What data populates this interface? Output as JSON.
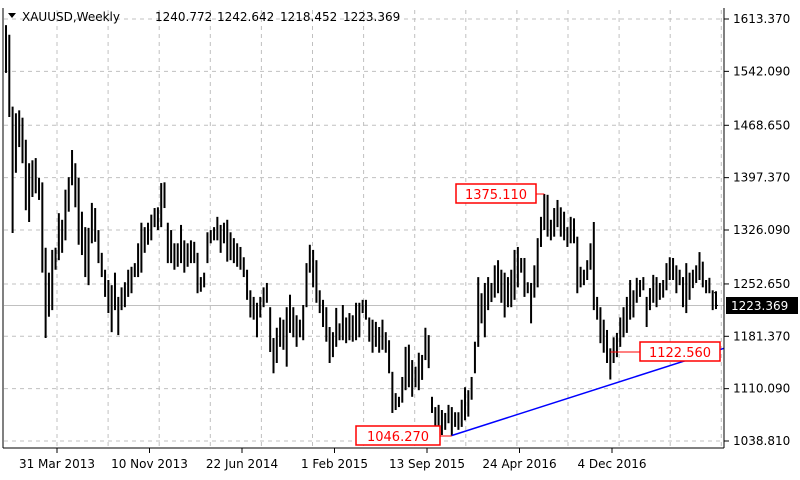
{
  "chart_data": {
    "type": "ohlc-bar",
    "symbol": "XAUUSD",
    "timeframe": "Weekly",
    "title": "XAUUSD,Weekly",
    "last_bar": {
      "open": "1240.772",
      "high": "1242.642",
      "low": "1218.452",
      "close": "1223.369"
    },
    "current_price_label": "1223.369",
    "ylim": [
      1029,
      1626
    ],
    "grid": true,
    "y_ticks": [
      "1613.370",
      "1542.090",
      "1468.650",
      "1397.370",
      "1326.090",
      "1252.650",
      "1181.370",
      "1110.090",
      "1038.810"
    ],
    "x_ticks": [
      "31 Mar 2013",
      "10 Nov 2013",
      "22 Jun 2014",
      "1 Feb 2015",
      "13 Sep 2015",
      "24 Apr 2016",
      "4 Dec 2016"
    ],
    "bars_high_low": [
      [
        1605,
        1540
      ],
      [
        1592,
        1480
      ],
      [
        1494,
        1322
      ],
      [
        1485,
        1404
      ],
      [
        1489,
        1439
      ],
      [
        1479,
        1417
      ],
      [
        1449,
        1353
      ],
      [
        1417,
        1337
      ],
      [
        1421,
        1371
      ],
      [
        1424,
        1376
      ],
      [
        1397,
        1367
      ],
      [
        1391,
        1268
      ],
      [
        1302,
        1179
      ],
      [
        1268,
        1208
      ],
      [
        1299,
        1217
      ],
      [
        1302,
        1272
      ],
      [
        1349,
        1285
      ],
      [
        1340,
        1295
      ],
      [
        1381,
        1312
      ],
      [
        1398,
        1351
      ],
      [
        1435,
        1387
      ],
      [
        1417,
        1357
      ],
      [
        1397,
        1306
      ],
      [
        1351,
        1292
      ],
      [
        1330,
        1262
      ],
      [
        1329,
        1251
      ],
      [
        1363,
        1308
      ],
      [
        1356,
        1310
      ],
      [
        1326,
        1281
      ],
      [
        1295,
        1262
      ],
      [
        1272,
        1235
      ],
      [
        1258,
        1213
      ],
      [
        1251,
        1187
      ],
      [
        1268,
        1217
      ],
      [
        1235,
        1183
      ],
      [
        1248,
        1217
      ],
      [
        1255,
        1221
      ],
      [
        1272,
        1235
      ],
      [
        1276,
        1240
      ],
      [
        1281,
        1262
      ],
      [
        1308,
        1262
      ],
      [
        1336,
        1268
      ],
      [
        1330,
        1295
      ],
      [
        1336,
        1306
      ],
      [
        1347,
        1312
      ],
      [
        1356,
        1330
      ],
      [
        1357,
        1326
      ],
      [
        1390,
        1330
      ],
      [
        1391,
        1356
      ],
      [
        1336,
        1281
      ],
      [
        1326,
        1281
      ],
      [
        1308,
        1272
      ],
      [
        1308,
        1276
      ],
      [
        1333,
        1281
      ],
      [
        1312,
        1268
      ],
      [
        1308,
        1276
      ],
      [
        1312,
        1281
      ],
      [
        1310,
        1281
      ],
      [
        1295,
        1240
      ],
      [
        1262,
        1242
      ],
      [
        1268,
        1248
      ],
      [
        1323,
        1281
      ],
      [
        1326,
        1308
      ],
      [
        1330,
        1312
      ],
      [
        1344,
        1312
      ],
      [
        1333,
        1295
      ],
      [
        1336,
        1308
      ],
      [
        1340,
        1283
      ],
      [
        1323,
        1285
      ],
      [
        1315,
        1281
      ],
      [
        1308,
        1276
      ],
      [
        1303,
        1272
      ],
      [
        1289,
        1262
      ],
      [
        1272,
        1231
      ],
      [
        1244,
        1207
      ],
      [
        1235,
        1204
      ],
      [
        1227,
        1180
      ],
      [
        1235,
        1207
      ],
      [
        1248,
        1221
      ],
      [
        1254,
        1227
      ],
      [
        1221,
        1160
      ],
      [
        1179,
        1131
      ],
      [
        1193,
        1145
      ],
      [
        1207,
        1167
      ],
      [
        1204,
        1163
      ],
      [
        1221,
        1140
      ],
      [
        1238,
        1186
      ],
      [
        1221,
        1180
      ],
      [
        1210,
        1167
      ],
      [
        1204,
        1180
      ],
      [
        1224,
        1176
      ],
      [
        1281,
        1221
      ],
      [
        1306,
        1268
      ],
      [
        1299,
        1248
      ],
      [
        1285,
        1227
      ],
      [
        1244,
        1213
      ],
      [
        1231,
        1194
      ],
      [
        1221,
        1174
      ],
      [
        1194,
        1145
      ],
      [
        1187,
        1153
      ],
      [
        1220,
        1167
      ],
      [
        1199,
        1176
      ],
      [
        1224,
        1176
      ],
      [
        1207,
        1172
      ],
      [
        1213,
        1176
      ],
      [
        1210,
        1174
      ],
      [
        1227,
        1176
      ],
      [
        1227,
        1180
      ],
      [
        1231,
        1213
      ],
      [
        1231,
        1204
      ],
      [
        1207,
        1174
      ],
      [
        1204,
        1159
      ],
      [
        1201,
        1167
      ],
      [
        1194,
        1159
      ],
      [
        1204,
        1163
      ],
      [
        1187,
        1159
      ],
      [
        1176,
        1131
      ],
      [
        1133,
        1077
      ],
      [
        1104,
        1081
      ],
      [
        1099,
        1085
      ],
      [
        1126,
        1091
      ],
      [
        1167,
        1108
      ],
      [
        1170,
        1112
      ],
      [
        1149,
        1099
      ],
      [
        1140,
        1112
      ],
      [
        1159,
        1108
      ],
      [
        1156,
        1122
      ],
      [
        1193,
        1149
      ],
      [
        1183,
        1138
      ],
      [
        1099,
        1077
      ],
      [
        1085,
        1054
      ],
      [
        1088,
        1058
      ],
      [
        1081,
        1047
      ],
      [
        1077,
        1054
      ],
      [
        1088,
        1063
      ],
      [
        1085,
        1046.27
      ],
      [
        1078,
        1058
      ],
      [
        1078,
        1054
      ],
      [
        1095,
        1058
      ],
      [
        1112,
        1067
      ],
      [
        1108,
        1072
      ],
      [
        1126,
        1095
      ],
      [
        1174,
        1131
      ],
      [
        1262,
        1167
      ],
      [
        1240,
        1199
      ],
      [
        1254,
        1180
      ],
      [
        1262,
        1217
      ],
      [
        1254,
        1228
      ],
      [
        1278,
        1234
      ],
      [
        1285,
        1240
      ],
      [
        1272,
        1227
      ],
      [
        1268,
        1207
      ],
      [
        1262,
        1221
      ],
      [
        1272,
        1221
      ],
      [
        1299,
        1231
      ],
      [
        1303,
        1248
      ],
      [
        1288,
        1268
      ],
      [
        1288,
        1235
      ],
      [
        1255,
        1240
      ],
      [
        1254,
        1199
      ],
      [
        1278,
        1234
      ],
      [
        1315,
        1248
      ],
      [
        1344,
        1303
      ],
      [
        1375.11,
        1326
      ],
      [
        1374,
        1317
      ],
      [
        1340,
        1312
      ],
      [
        1356,
        1317
      ],
      [
        1367,
        1330
      ],
      [
        1357,
        1317
      ],
      [
        1351,
        1312
      ],
      [
        1330,
        1303
      ],
      [
        1344,
        1308
      ],
      [
        1342,
        1308
      ],
      [
        1317,
        1240
      ],
      [
        1276,
        1248
      ],
      [
        1272,
        1251
      ],
      [
        1285,
        1258
      ],
      [
        1308,
        1272
      ],
      [
        1337,
        1217
      ],
      [
        1235,
        1204
      ],
      [
        1221,
        1172
      ],
      [
        1204,
        1159
      ],
      [
        1190,
        1145
      ],
      [
        1165,
        1122.56
      ],
      [
        1180,
        1145
      ],
      [
        1186,
        1153
      ],
      [
        1207,
        1167
      ],
      [
        1221,
        1180
      ],
      [
        1235,
        1186
      ],
      [
        1258,
        1204
      ],
      [
        1244,
        1207
      ],
      [
        1261,
        1227
      ],
      [
        1258,
        1235
      ],
      [
        1262,
        1244
      ],
      [
        1235,
        1194
      ],
      [
        1247,
        1217
      ],
      [
        1265,
        1227
      ],
      [
        1262,
        1221
      ],
      [
        1254,
        1231
      ],
      [
        1258,
        1234
      ],
      [
        1281,
        1244
      ],
      [
        1289,
        1258
      ],
      [
        1288,
        1258
      ],
      [
        1278,
        1240
      ],
      [
        1272,
        1251
      ],
      [
        1262,
        1221
      ],
      [
        1281,
        1213
      ],
      [
        1268,
        1231
      ],
      [
        1272,
        1247
      ],
      [
        1278,
        1254
      ],
      [
        1296,
        1258
      ],
      [
        1283,
        1248
      ],
      [
        1258,
        1240
      ],
      [
        1261,
        1240
      ],
      [
        1244,
        1217
      ],
      [
        1242.642,
        1218.452
      ]
    ],
    "annotations": [
      {
        "text": "1375.110",
        "price": 1375.11,
        "kind": "high"
      },
      {
        "text": "1046.270",
        "price": 1046.27,
        "kind": "low"
      },
      {
        "text": "1122.560",
        "price": 1122.56,
        "kind": "low"
      }
    ],
    "trendline": {
      "start_price": 1046.27,
      "end_price": 1165,
      "color": "#0000ff"
    },
    "colors": {
      "bars": "#000000",
      "grid": "#c0c0c0",
      "annotation": "#ff0000",
      "trendline": "#0000ff",
      "price_label_bg": "#000000"
    }
  }
}
